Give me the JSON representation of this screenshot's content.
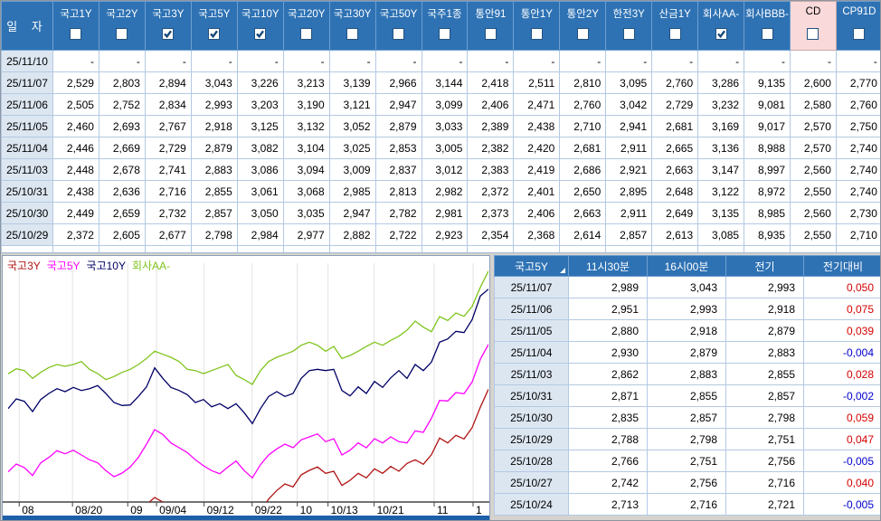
{
  "top_table": {
    "date_header": "일  자",
    "columns": [
      {
        "label": "국고1Y",
        "checked": false,
        "highlight": false
      },
      {
        "label": "국고2Y",
        "checked": false,
        "highlight": false
      },
      {
        "label": "국고3Y",
        "checked": true,
        "highlight": false
      },
      {
        "label": "국고5Y",
        "checked": true,
        "highlight": false
      },
      {
        "label": "국고10Y",
        "checked": true,
        "highlight": false
      },
      {
        "label": "국고20Y",
        "checked": false,
        "highlight": false
      },
      {
        "label": "국고30Y",
        "checked": false,
        "highlight": false
      },
      {
        "label": "국고50Y",
        "checked": false,
        "highlight": false
      },
      {
        "label": "국주1종",
        "checked": false,
        "highlight": false
      },
      {
        "label": "통안91",
        "checked": false,
        "highlight": false
      },
      {
        "label": "통안1Y",
        "checked": false,
        "highlight": false
      },
      {
        "label": "통안2Y",
        "checked": false,
        "highlight": false
      },
      {
        "label": "한전3Y",
        "checked": false,
        "highlight": false
      },
      {
        "label": "산금1Y",
        "checked": false,
        "highlight": false
      },
      {
        "label": "회사AA-",
        "checked": true,
        "highlight": false
      },
      {
        "label": "회사BBB-",
        "checked": false,
        "highlight": false
      },
      {
        "label": "CD",
        "checked": false,
        "highlight": true
      },
      {
        "label": "CP91D",
        "checked": false,
        "highlight": false
      }
    ],
    "rows": [
      {
        "date": "25/11/10",
        "values": [
          "-",
          "-",
          "-",
          "-",
          "-",
          "-",
          "-",
          "-",
          "-",
          "-",
          "-",
          "-",
          "-",
          "-",
          "-",
          "-",
          "-",
          "-"
        ]
      },
      {
        "date": "25/11/07",
        "values": [
          "2,529",
          "2,803",
          "2,894",
          "3,043",
          "3,226",
          "3,213",
          "3,139",
          "2,966",
          "3,144",
          "2,418",
          "2,511",
          "2,810",
          "3,095",
          "2,760",
          "3,286",
          "9,135",
          "2,600",
          "2,770"
        ]
      },
      {
        "date": "25/11/06",
        "values": [
          "2,505",
          "2,752",
          "2,834",
          "2,993",
          "3,203",
          "3,190",
          "3,121",
          "2,947",
          "3,099",
          "2,406",
          "2,471",
          "2,760",
          "3,042",
          "2,729",
          "3,232",
          "9,081",
          "2,580",
          "2,760"
        ]
      },
      {
        "date": "25/11/05",
        "values": [
          "2,460",
          "2,693",
          "2,767",
          "2,918",
          "3,125",
          "3,132",
          "3,052",
          "2,879",
          "3,033",
          "2,389",
          "2,438",
          "2,710",
          "2,941",
          "2,681",
          "3,169",
          "9,017",
          "2,570",
          "2,750"
        ]
      },
      {
        "date": "25/11/04",
        "values": [
          "2,446",
          "2,669",
          "2,729",
          "2,879",
          "3,082",
          "3,104",
          "3,025",
          "2,853",
          "3,005",
          "2,382",
          "2,420",
          "2,681",
          "2,911",
          "2,665",
          "3,136",
          "8,988",
          "2,570",
          "2,740"
        ]
      },
      {
        "date": "25/11/03",
        "values": [
          "2,448",
          "2,678",
          "2,741",
          "2,883",
          "3,086",
          "3,094",
          "3,009",
          "2,837",
          "3,012",
          "2,383",
          "2,419",
          "2,686",
          "2,921",
          "2,663",
          "3,147",
          "8,997",
          "2,560",
          "2,740"
        ]
      },
      {
        "date": "25/10/31",
        "values": [
          "2,438",
          "2,636",
          "2,716",
          "2,855",
          "3,061",
          "3,068",
          "2,985",
          "2,813",
          "2,982",
          "2,372",
          "2,401",
          "2,650",
          "2,895",
          "2,648",
          "3,122",
          "8,972",
          "2,550",
          "2,740"
        ]
      },
      {
        "date": "25/10/30",
        "values": [
          "2,449",
          "2,659",
          "2,732",
          "2,857",
          "3,050",
          "3,035",
          "2,947",
          "2,782",
          "2,981",
          "2,373",
          "2,406",
          "2,663",
          "2,911",
          "2,649",
          "3,135",
          "8,985",
          "2,560",
          "2,730"
        ]
      },
      {
        "date": "25/10/29",
        "values": [
          "2,372",
          "2,605",
          "2,677",
          "2,798",
          "2,984",
          "2,977",
          "2,882",
          "2,722",
          "2,923",
          "2,354",
          "2,368",
          "2,614",
          "2,857",
          "2,613",
          "3,085",
          "8,935",
          "2,550",
          "2,710"
        ]
      }
    ]
  },
  "quote_table": {
    "headers": [
      "국고5Y",
      "11시30분",
      "16시00분",
      "전기",
      "전기대비"
    ],
    "rows": [
      {
        "date": "25/11/07",
        "t1130": "2,989",
        "t1600": "3,043",
        "prev": "2,993",
        "change": "0,050"
      },
      {
        "date": "25/11/06",
        "t1130": "2,951",
        "t1600": "2,993",
        "prev": "2,918",
        "change": "0,075"
      },
      {
        "date": "25/11/05",
        "t1130": "2,880",
        "t1600": "2,918",
        "prev": "2,879",
        "change": "0,039"
      },
      {
        "date": "25/11/04",
        "t1130": "2,930",
        "t1600": "2,879",
        "prev": "2,883",
        "change": "-0,004"
      },
      {
        "date": "25/11/03",
        "t1130": "2,862",
        "t1600": "2,883",
        "prev": "2,855",
        "change": "0,028"
      },
      {
        "date": "25/10/31",
        "t1130": "2,871",
        "t1600": "2,855",
        "prev": "2,857",
        "change": "-0,002"
      },
      {
        "date": "25/10/30",
        "t1130": "2,835",
        "t1600": "2,857",
        "prev": "2,798",
        "change": "0,059"
      },
      {
        "date": "25/10/29",
        "t1130": "2,788",
        "t1600": "2,798",
        "prev": "2,751",
        "change": "0,047"
      },
      {
        "date": "25/10/28",
        "t1130": "2,766",
        "t1600": "2,751",
        "prev": "2,756",
        "change": "-0,005"
      },
      {
        "date": "25/10/27",
        "t1130": "2,742",
        "t1600": "2,756",
        "prev": "2,716",
        "change": "0,040"
      },
      {
        "date": "25/10/24",
        "t1130": "2,713",
        "t1600": "2,716",
        "prev": "2,721",
        "change": "-0,005"
      }
    ],
    "colors": {
      "positive": "#d40000",
      "negative": "#0000cc"
    }
  },
  "chart_data": {
    "type": "line",
    "ylim": [
      2.52,
      3.3
    ],
    "grid": "vertical",
    "legend_position": "top-left",
    "x_ticks": [
      {
        "label": "08",
        "pos": 0.023
      },
      {
        "label": "08/20",
        "pos": 0.134
      },
      {
        "label": "09",
        "pos": 0.249
      },
      {
        "label": "09/04",
        "pos": 0.309
      },
      {
        "label": "09/12",
        "pos": 0.408
      },
      {
        "label": "09/22",
        "pos": 0.508
      },
      {
        "label": "10",
        "pos": 0.602
      },
      {
        "label": "10/13",
        "pos": 0.666
      },
      {
        "label": "10/21",
        "pos": 0.762
      },
      {
        "label": "11",
        "pos": 0.887
      },
      {
        "label": "1",
        "pos": 0.968
      }
    ],
    "series": [
      {
        "name": "국고3Y",
        "color": "#b01414",
        "values": [
          2.46,
          2.48,
          2.47,
          2.45,
          2.48,
          2.492,
          2.5,
          2.492,
          2.5,
          2.49,
          2.482,
          2.472,
          2.455,
          2.44,
          2.45,
          2.468,
          2.49,
          2.512,
          2.535,
          2.52,
          2.5,
          2.482,
          2.47,
          2.46,
          2.47,
          2.455,
          2.462,
          2.45,
          2.456,
          2.44,
          2.448,
          2.49,
          2.53,
          2.558,
          2.58,
          2.57,
          2.61,
          2.625,
          2.636,
          2.615,
          2.622,
          2.575,
          2.592,
          2.615,
          2.6,
          2.63,
          2.615,
          2.638,
          2.622,
          2.648,
          2.66,
          2.645,
          2.677,
          2.732,
          2.716,
          2.741,
          2.729,
          2.767,
          2.834,
          2.894
        ]
      },
      {
        "name": "국고5Y",
        "color": "#ff00ff",
        "values": [
          2.62,
          2.646,
          2.634,
          2.608,
          2.65,
          2.668,
          2.69,
          2.68,
          2.692,
          2.676,
          2.66,
          2.65,
          2.624,
          2.604,
          2.616,
          2.636,
          2.668,
          2.712,
          2.76,
          2.744,
          2.716,
          2.7,
          2.684,
          2.66,
          2.64,
          2.624,
          2.614,
          2.636,
          2.656,
          2.624,
          2.6,
          2.644,
          2.676,
          2.696,
          2.712,
          2.7,
          2.726,
          2.736,
          2.746,
          2.72,
          2.73,
          2.676,
          2.692,
          2.716,
          2.7,
          2.73,
          2.716,
          2.736,
          2.72,
          2.716,
          2.756,
          2.751,
          2.798,
          2.857,
          2.855,
          2.883,
          2.879,
          2.918,
          2.993,
          3.043
        ]
      },
      {
        "name": "국고10Y",
        "color": "#000066",
        "values": [
          2.83,
          2.862,
          2.854,
          2.82,
          2.86,
          2.88,
          2.896,
          2.886,
          2.9,
          2.89,
          2.896,
          2.906,
          2.88,
          2.85,
          2.84,
          2.842,
          2.87,
          2.902,
          2.965,
          2.93,
          2.9,
          2.89,
          2.876,
          2.85,
          2.86,
          2.836,
          2.846,
          2.83,
          2.846,
          2.816,
          2.78,
          2.83,
          2.87,
          2.886,
          2.87,
          2.88,
          2.93,
          2.956,
          2.96,
          2.956,
          2.96,
          2.89,
          2.872,
          2.902,
          2.88,
          2.92,
          2.9,
          2.932,
          2.956,
          2.93,
          2.976,
          2.956,
          2.984,
          3.05,
          3.061,
          3.086,
          3.082,
          3.125,
          3.203,
          3.226
        ]
      },
      {
        "name": "회사AA-",
        "color": "#7fc41c",
        "values": [
          2.945,
          2.962,
          2.956,
          2.93,
          2.95,
          2.966,
          2.976,
          2.97,
          2.976,
          2.986,
          2.96,
          2.946,
          2.926,
          2.936,
          2.95,
          2.96,
          2.976,
          2.996,
          3.02,
          3.01,
          3.0,
          2.986,
          2.96,
          2.956,
          2.946,
          2.956,
          2.966,
          2.976,
          2.94,
          2.926,
          2.91,
          2.956,
          2.986,
          3.0,
          3.01,
          3.02,
          3.04,
          3.05,
          3.04,
          3.02,
          3.036,
          2.996,
          3.006,
          3.02,
          3.036,
          3.05,
          3.04,
          3.056,
          3.07,
          3.09,
          3.12,
          3.1,
          3.085,
          3.135,
          3.122,
          3.147,
          3.136,
          3.169,
          3.232,
          3.286
        ]
      }
    ]
  }
}
